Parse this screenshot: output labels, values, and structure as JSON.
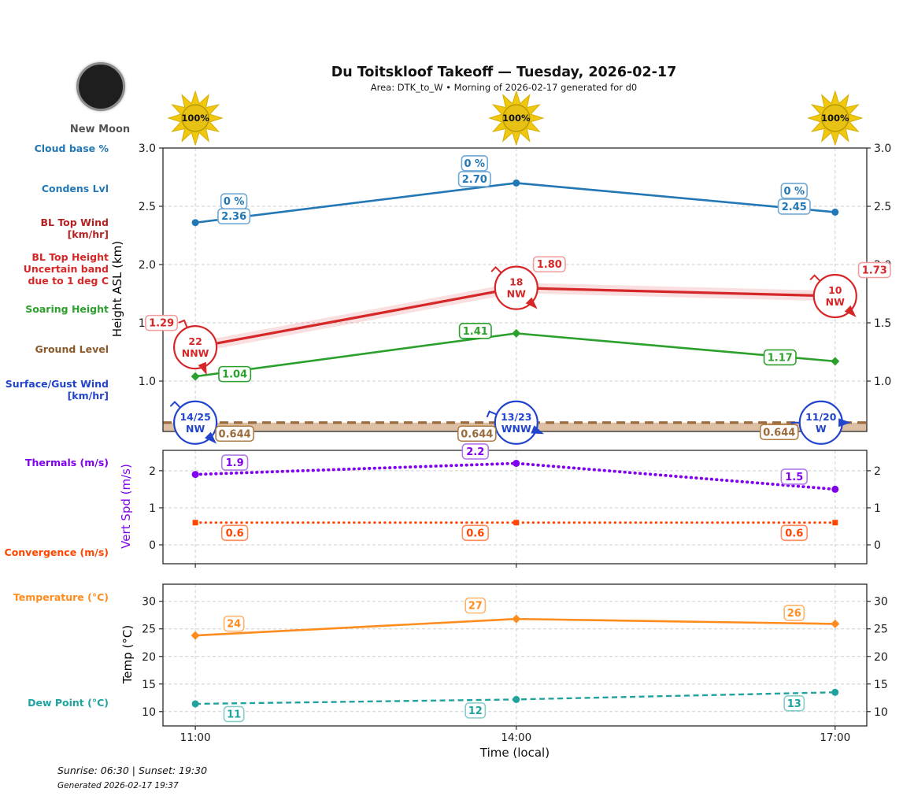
{
  "header": {
    "title": "Du Toitskloof Takeoff — Tuesday, 2026-02-17",
    "subtitle": "Area: DTK_to_W • Morning of 2026-02-17 generated for d0"
  },
  "moon": {
    "label": "New Moon"
  },
  "sun_labels": [
    "100%",
    "100%",
    "100%"
  ],
  "sidebar": {
    "labels": [
      {
        "text": "Cloud base %",
        "color": "#2277b5"
      },
      {
        "text": "Condens Lvl",
        "color": "#2277b5"
      },
      {
        "text": "BL Top Wind\n[km/hr]",
        "color": "#b22222"
      },
      {
        "text": "BL Top Height\nUncertain band\ndue to 1 deg C",
        "color": "#d62728"
      },
      {
        "text": "Soaring Height",
        "color": "#2ca02c"
      },
      {
        "text": "Ground Level",
        "color": "#8b5a2b"
      },
      {
        "text": "Surface/Gust Wind\n[km/hr]",
        "color": "#2244cc"
      },
      {
        "text": "Thermals (m/s)",
        "color": "#8000f0"
      },
      {
        "text": "Convergence (m/s)",
        "color": "#ff4500"
      },
      {
        "text": "Temperature (°C)",
        "color": "#ff8c1e"
      },
      {
        "text": "Dew Point (°C)",
        "color": "#20a39e"
      }
    ]
  },
  "xaxis": {
    "title": "Time (local)",
    "ticks": [
      "11:00",
      "14:00",
      "17:00"
    ]
  },
  "footer": {
    "sun_times": "Sunrise: 06:30 | Sunset: 19:30",
    "generated": "Generated 2026-02-17 19:37"
  },
  "colors": {
    "sun_ray": "#f0c810",
    "sun_ray_edge": "#d4ad00",
    "sun_center": "#e7c114",
    "sun_border": "#b89a00",
    "grid": "#cfcfcf",
    "axis": "#2a2a2a",
    "tick_text": "#1a1a1a"
  },
  "chart_data": [
    {
      "id": "height",
      "type": "line",
      "ylabel": "Height ASL (km)",
      "ylabel_color": "#000000",
      "ylim": [
        0.568,
        3.0
      ],
      "yticks": [
        "3.0",
        "2.5",
        "2.0",
        "1.5",
        "1.0"
      ],
      "x": [
        "11:00",
        "14:00",
        "17:00"
      ],
      "series": [
        {
          "name": "Condensation Level",
          "color": "#2277b5",
          "box_border": "#6fa8d4",
          "style": "solid",
          "marker": "circle",
          "values": [
            2.36,
            2.7,
            2.45
          ],
          "labels": [
            "2.36",
            "2.70",
            "2.45"
          ],
          "top_labels": [
            "0 %",
            "0 %",
            "0 %"
          ]
        },
        {
          "name": "BL Top Height",
          "color": "#d62728",
          "box_border": "#f29d9d",
          "style": "solid",
          "band": 0.045,
          "values": [
            1.29,
            1.8,
            1.73
          ],
          "labels": [
            "1.29",
            "1.80",
            "1.73"
          ],
          "wind": [
            {
              "speed": "22",
              "dir": "NNW"
            },
            {
              "speed": "18",
              "dir": "NW"
            },
            {
              "speed": "10",
              "dir": "NW"
            }
          ]
        },
        {
          "name": "Soaring Height",
          "color": "#2ca02c",
          "box_border": "#2ca02c",
          "style": "solid",
          "marker": "diamond",
          "values": [
            1.04,
            1.41,
            1.17
          ],
          "labels": [
            "1.04",
            "1.41",
            "1.17"
          ]
        },
        {
          "name": "Ground Level",
          "color": "#9c6b3d",
          "box_border": "#b07b42",
          "style": "ground",
          "fill": "#d5b08c",
          "values": [
            0.644,
            0.644,
            0.644
          ],
          "labels": [
            "0.644",
            "0.644",
            "0.644"
          ]
        },
        {
          "name": "Surface Gust Wind",
          "color": "#2244cc",
          "style": "wind",
          "values": [
            0.644,
            0.644,
            0.644
          ],
          "wind": [
            {
              "speed": "14/25",
              "dir": "NW"
            },
            {
              "speed": "13/23",
              "dir": "WNW"
            },
            {
              "speed": "11/20",
              "dir": "W"
            }
          ]
        }
      ]
    },
    {
      "id": "vertspd",
      "type": "line",
      "ylabel": "Vert Spd (m/s)",
      "ylabel_color": "#8000f0",
      "ylim": [
        -0.51,
        2.55
      ],
      "yticks": [
        "2",
        "1",
        "0"
      ],
      "x": [
        "11:00",
        "14:00",
        "17:00"
      ],
      "series": [
        {
          "name": "Thermals",
          "color": "#8000f0",
          "box_border": "#b07ae8",
          "style": "dotted",
          "marker": "circle",
          "values": [
            1.9,
            2.2,
            1.5
          ],
          "labels": [
            "1.9",
            "2.2",
            "1.5"
          ]
        },
        {
          "name": "Convergence",
          "color": "#ff4500",
          "box_border": "#ff8a5c",
          "style": "dotted",
          "marker": "square",
          "values": [
            0.6,
            0.6,
            0.6
          ],
          "labels": [
            "0.6",
            "0.6",
            "0.6"
          ]
        }
      ]
    },
    {
      "id": "temp",
      "type": "line",
      "ylabel": "Temp (°C)",
      "ylabel_color": "#000000",
      "ylim": [
        7.4,
        33.1
      ],
      "yticks": [
        "30",
        "25",
        "20",
        "15",
        "10"
      ],
      "x": [
        "11:00",
        "14:00",
        "17:00"
      ],
      "series": [
        {
          "name": "Temperature",
          "color": "#ff8c1e",
          "box_border": "#ffb36b",
          "style": "solid",
          "marker": "diamond",
          "values": [
            23.8,
            26.8,
            25.9
          ],
          "labels": [
            "24",
            "27",
            "26"
          ]
        },
        {
          "name": "Dew Point",
          "color": "#20a39e",
          "box_border": "#86ccc8",
          "style": "dashed",
          "marker": "circle",
          "values": [
            11.4,
            12.2,
            13.5
          ],
          "labels": [
            "11",
            "12",
            "13"
          ]
        }
      ]
    }
  ]
}
